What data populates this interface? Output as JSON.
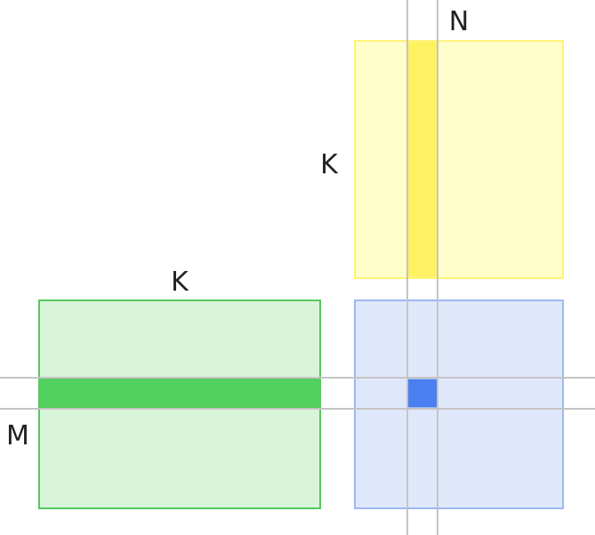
{
  "labels": {
    "top_right": "N",
    "b_height": "K",
    "a_width": "K",
    "left": "M"
  },
  "colors": {
    "a_fill": "#d9f5d9",
    "a_stroke": "#55c95c",
    "a_strip": "#52d15f",
    "b_fill": "#fffdc9",
    "b_stroke": "#fff27a",
    "b_strip": "#fff262",
    "c_fill": "#dfe8fb",
    "c_stroke": "#9db8f5",
    "c_cell": "#4b7ff0",
    "guide": "#c4c4c4",
    "text": "#222222"
  }
}
